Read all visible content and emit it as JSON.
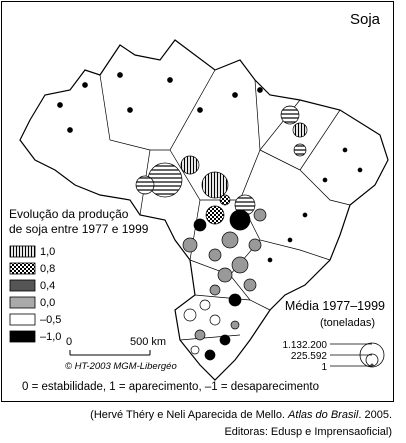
{
  "map": {
    "title": "Soja",
    "legend_title": [
      "Evolução da produção",
      "de soja entre 1977 e 1999"
    ],
    "legend_classes": [
      "1,0",
      "0,8",
      "0,4",
      "0,0",
      "–0,5",
      "–1,0"
    ],
    "size_title": "Média 1977–1999",
    "size_unit": "(toneladas)",
    "size_classes": [
      "1.132.200",
      "225.592",
      "1"
    ],
    "scale": [
      "0",
      "500 km"
    ],
    "credit": "© HT-2003 MGM-Libergéo",
    "note": "0 = estabilidade, 1 = aparecimento, –1 = desaparecimento"
  },
  "caption": {
    "line1": [
      "(Hervé Théry e Neli Aparecida de Mello. ",
      "Atlas do Brasil",
      ". 2005."
    ],
    "line2": "Editoras: Edusp e Imprensaoficial)"
  }
}
